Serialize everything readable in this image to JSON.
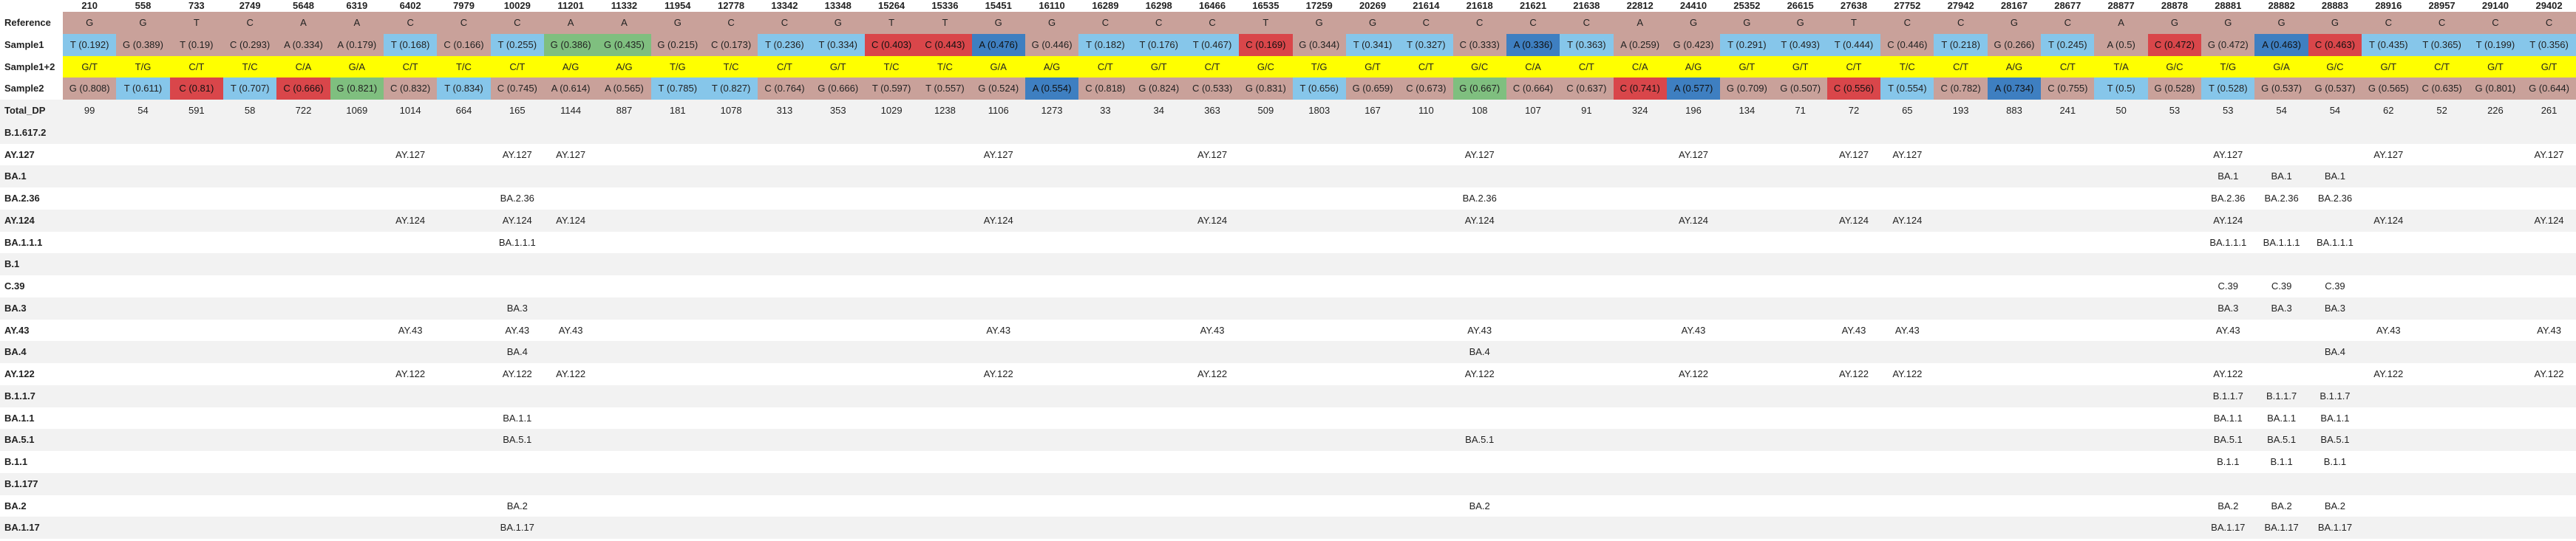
{
  "colors": {
    "base": "#c9a19a",
    "mixed": "#ffff00",
    "T": "#86c6ea",
    "C_high": "#d9464a",
    "G_high": "#7fbf7f",
    "A_high": "#3e7fc1",
    "band": "#f2f2f2"
  },
  "positions": [
    "210",
    "558",
    "733",
    "2749",
    "5648",
    "6319",
    "6402",
    "7979",
    "10029",
    "11201",
    "11332",
    "11954",
    "12778",
    "13342",
    "13348",
    "15264",
    "15336",
    "15451",
    "16110",
    "16289",
    "16298",
    "16466",
    "16535",
    "17259",
    "20269",
    "21614",
    "21618",
    "21621",
    "21638",
    "22812",
    "24410",
    "25352",
    "26615",
    "27638",
    "27752",
    "27942",
    "28167",
    "28677",
    "28877",
    "28878",
    "28881",
    "28882",
    "28883",
    "28916",
    "28957",
    "29140",
    "29402"
  ],
  "rows": [
    {
      "label": "Reference",
      "kind": "ref",
      "cells": [
        {
          "t": "G",
          "c": "G"
        },
        {
          "t": "G",
          "c": "G"
        },
        {
          "t": "T",
          "c": "base"
        },
        {
          "t": "C",
          "c": "C"
        },
        {
          "t": "A",
          "c": "A"
        },
        {
          "t": "A",
          "c": "A"
        },
        {
          "t": "C",
          "c": "C"
        },
        {
          "t": "C",
          "c": "C"
        },
        {
          "t": "C",
          "c": "C"
        },
        {
          "t": "A",
          "c": "A"
        },
        {
          "t": "A",
          "c": "A"
        },
        {
          "t": "G",
          "c": "G"
        },
        {
          "t": "C",
          "c": "C"
        },
        {
          "t": "C",
          "c": "C"
        },
        {
          "t": "G",
          "c": "G"
        },
        {
          "t": "T",
          "c": "base"
        },
        {
          "t": "T",
          "c": "base"
        },
        {
          "t": "G",
          "c": "G"
        },
        {
          "t": "G",
          "c": "G"
        },
        {
          "t": "C",
          "c": "C"
        },
        {
          "t": "C",
          "c": "C"
        },
        {
          "t": "C",
          "c": "C"
        },
        {
          "t": "T",
          "c": "base"
        },
        {
          "t": "G",
          "c": "G"
        },
        {
          "t": "G",
          "c": "G"
        },
        {
          "t": "C",
          "c": "C"
        },
        {
          "t": "C",
          "c": "C"
        },
        {
          "t": "C",
          "c": "C"
        },
        {
          "t": "C",
          "c": "C"
        },
        {
          "t": "A",
          "c": "A"
        },
        {
          "t": "G",
          "c": "G"
        },
        {
          "t": "G",
          "c": "G"
        },
        {
          "t": "G",
          "c": "G"
        },
        {
          "t": "T",
          "c": "base"
        },
        {
          "t": "C",
          "c": "C"
        },
        {
          "t": "C",
          "c": "C"
        },
        {
          "t": "G",
          "c": "G"
        },
        {
          "t": "C",
          "c": "C"
        },
        {
          "t": "A",
          "c": "A"
        },
        {
          "t": "G",
          "c": "G"
        },
        {
          "t": "G",
          "c": "G"
        },
        {
          "t": "G",
          "c": "G"
        },
        {
          "t": "G",
          "c": "G"
        },
        {
          "t": "C",
          "c": "C"
        },
        {
          "t": "C",
          "c": "C"
        },
        {
          "t": "C",
          "c": "C"
        },
        {
          "t": "C",
          "c": "C"
        }
      ]
    },
    {
      "label": "Sample1",
      "kind": "sample",
      "cells": [
        {
          "t": "T (0.192)",
          "c": "T"
        },
        {
          "t": "G (0.389)",
          "c": "G"
        },
        {
          "t": "T (0.19)",
          "c": "base"
        },
        {
          "t": "C (0.293)",
          "c": "C"
        },
        {
          "t": "A (0.334)",
          "c": "A"
        },
        {
          "t": "A (0.179)",
          "c": "A"
        },
        {
          "t": "T (0.168)",
          "c": "T"
        },
        {
          "t": "C (0.166)",
          "c": "C"
        },
        {
          "t": "T (0.255)",
          "c": "T"
        },
        {
          "t": "G (0.386)",
          "c": "Ghi"
        },
        {
          "t": "G (0.435)",
          "c": "Ghi"
        },
        {
          "t": "G (0.215)",
          "c": "G"
        },
        {
          "t": "C (0.173)",
          "c": "C"
        },
        {
          "t": "T (0.236)",
          "c": "T"
        },
        {
          "t": "T (0.334)",
          "c": "T"
        },
        {
          "t": "C (0.403)",
          "c": "Chi"
        },
        {
          "t": "C (0.443)",
          "c": "Chi"
        },
        {
          "t": "A (0.476)",
          "c": "Ahi"
        },
        {
          "t": "G (0.446)",
          "c": "G"
        },
        {
          "t": "T (0.182)",
          "c": "T"
        },
        {
          "t": "T (0.176)",
          "c": "T"
        },
        {
          "t": "T (0.467)",
          "c": "T"
        },
        {
          "t": "C (0.169)",
          "c": "Chi"
        },
        {
          "t": "G (0.344)",
          "c": "G"
        },
        {
          "t": "T (0.341)",
          "c": "T"
        },
        {
          "t": "T (0.327)",
          "c": "T"
        },
        {
          "t": "C (0.333)",
          "c": "C"
        },
        {
          "t": "A (0.336)",
          "c": "Ahi"
        },
        {
          "t": "T (0.363)",
          "c": "T"
        },
        {
          "t": "A (0.259)",
          "c": "A"
        },
        {
          "t": "G (0.423)",
          "c": "G"
        },
        {
          "t": "T (0.291)",
          "c": "T"
        },
        {
          "t": "T (0.493)",
          "c": "T"
        },
        {
          "t": "T (0.444)",
          "c": "T"
        },
        {
          "t": "C (0.446)",
          "c": "C"
        },
        {
          "t": "T (0.218)",
          "c": "T"
        },
        {
          "t": "G (0.266)",
          "c": "G"
        },
        {
          "t": "T (0.245)",
          "c": "T"
        },
        {
          "t": "A (0.5)",
          "c": "A"
        },
        {
          "t": "C (0.472)",
          "c": "Chi"
        },
        {
          "t": "G (0.472)",
          "c": "G"
        },
        {
          "t": "A (0.463)",
          "c": "Ahi"
        },
        {
          "t": "C (0.463)",
          "c": "Chi"
        },
        {
          "t": "T (0.435)",
          "c": "T"
        },
        {
          "t": "T (0.365)",
          "c": "T"
        },
        {
          "t": "T (0.199)",
          "c": "T"
        },
        {
          "t": "T (0.356)",
          "c": "T"
        }
      ]
    },
    {
      "label": "Sample1+2",
      "kind": "mix",
      "cells": [
        {
          "t": "G/T",
          "c": "mix"
        },
        {
          "t": "T/G",
          "c": "mix"
        },
        {
          "t": "C/T",
          "c": "mix"
        },
        {
          "t": "T/C",
          "c": "mix"
        },
        {
          "t": "C/A",
          "c": "mix"
        },
        {
          "t": "G/A",
          "c": "mix"
        },
        {
          "t": "C/T",
          "c": "mix"
        },
        {
          "t": "T/C",
          "c": "mix"
        },
        {
          "t": "C/T",
          "c": "mix"
        },
        {
          "t": "A/G",
          "c": "mix"
        },
        {
          "t": "A/G",
          "c": "mix"
        },
        {
          "t": "T/G",
          "c": "mix"
        },
        {
          "t": "T/C",
          "c": "mix"
        },
        {
          "t": "C/T",
          "c": "mix"
        },
        {
          "t": "G/T",
          "c": "mix"
        },
        {
          "t": "T/C",
          "c": "mix"
        },
        {
          "t": "T/C",
          "c": "mix"
        },
        {
          "t": "G/A",
          "c": "mix"
        },
        {
          "t": "A/G",
          "c": "mix"
        },
        {
          "t": "C/T",
          "c": "mix"
        },
        {
          "t": "G/T",
          "c": "mix"
        },
        {
          "t": "C/T",
          "c": "mix"
        },
        {
          "t": "G/C",
          "c": "mix"
        },
        {
          "t": "T/G",
          "c": "mix"
        },
        {
          "t": "G/T",
          "c": "mix"
        },
        {
          "t": "C/T",
          "c": "mix"
        },
        {
          "t": "G/C",
          "c": "mix"
        },
        {
          "t": "C/A",
          "c": "mix"
        },
        {
          "t": "C/T",
          "c": "mix"
        },
        {
          "t": "C/A",
          "c": "mix"
        },
        {
          "t": "A/G",
          "c": "mix"
        },
        {
          "t": "G/T",
          "c": "mix"
        },
        {
          "t": "G/T",
          "c": "mix"
        },
        {
          "t": "C/T",
          "c": "mix"
        },
        {
          "t": "T/C",
          "c": "mix"
        },
        {
          "t": "C/T",
          "c": "mix"
        },
        {
          "t": "A/G",
          "c": "mix"
        },
        {
          "t": "C/T",
          "c": "mix"
        },
        {
          "t": "T/A",
          "c": "mix"
        },
        {
          "t": "G/C",
          "c": "mix"
        },
        {
          "t": "T/G",
          "c": "mix"
        },
        {
          "t": "G/A",
          "c": "mix"
        },
        {
          "t": "G/C",
          "c": "mix"
        },
        {
          "t": "G/T",
          "c": "mix"
        },
        {
          "t": "C/T",
          "c": "mix"
        },
        {
          "t": "G/T",
          "c": "mix"
        },
        {
          "t": "G/T",
          "c": "mix"
        }
      ]
    },
    {
      "label": "Sample2",
      "kind": "sample",
      "cells": [
        {
          "t": "G (0.808)",
          "c": "G"
        },
        {
          "t": "T (0.611)",
          "c": "T"
        },
        {
          "t": "C (0.81)",
          "c": "Chi"
        },
        {
          "t": "T (0.707)",
          "c": "T"
        },
        {
          "t": "C (0.666)",
          "c": "Chi"
        },
        {
          "t": "G (0.821)",
          "c": "Ghi"
        },
        {
          "t": "C (0.832)",
          "c": "C"
        },
        {
          "t": "T (0.834)",
          "c": "T"
        },
        {
          "t": "C (0.745)",
          "c": "C"
        },
        {
          "t": "A (0.614)",
          "c": "A"
        },
        {
          "t": "A (0.565)",
          "c": "A"
        },
        {
          "t": "T (0.785)",
          "c": "T"
        },
        {
          "t": "T (0.827)",
          "c": "T"
        },
        {
          "t": "C (0.764)",
          "c": "C"
        },
        {
          "t": "G (0.666)",
          "c": "G"
        },
        {
          "t": "T (0.597)",
          "c": "base"
        },
        {
          "t": "T (0.557)",
          "c": "base"
        },
        {
          "t": "G (0.524)",
          "c": "G"
        },
        {
          "t": "A (0.554)",
          "c": "Ahi"
        },
        {
          "t": "C (0.818)",
          "c": "C"
        },
        {
          "t": "G (0.824)",
          "c": "G"
        },
        {
          "t": "C (0.533)",
          "c": "C"
        },
        {
          "t": "G (0.831)",
          "c": "G"
        },
        {
          "t": "T (0.656)",
          "c": "T"
        },
        {
          "t": "G (0.659)",
          "c": "G"
        },
        {
          "t": "C (0.673)",
          "c": "C"
        },
        {
          "t": "G (0.667)",
          "c": "Ghi"
        },
        {
          "t": "C (0.664)",
          "c": "C"
        },
        {
          "t": "C (0.637)",
          "c": "C"
        },
        {
          "t": "C (0.741)",
          "c": "Chi"
        },
        {
          "t": "A (0.577)",
          "c": "Ahi"
        },
        {
          "t": "G (0.709)",
          "c": "G"
        },
        {
          "t": "G (0.507)",
          "c": "G"
        },
        {
          "t": "C (0.556)",
          "c": "Chi"
        },
        {
          "t": "T (0.554)",
          "c": "T"
        },
        {
          "t": "C (0.782)",
          "c": "C"
        },
        {
          "t": "A (0.734)",
          "c": "Ahi"
        },
        {
          "t": "C (0.755)",
          "c": "C"
        },
        {
          "t": "T (0.5)",
          "c": "T"
        },
        {
          "t": "G (0.528)",
          "c": "G"
        },
        {
          "t": "T (0.528)",
          "c": "T"
        },
        {
          "t": "G (0.537)",
          "c": "G"
        },
        {
          "t": "G (0.537)",
          "c": "G"
        },
        {
          "t": "G (0.565)",
          "c": "G"
        },
        {
          "t": "C (0.635)",
          "c": "C"
        },
        {
          "t": "G (0.801)",
          "c": "G"
        },
        {
          "t": "G (0.644)",
          "c": "G"
        }
      ]
    },
    {
      "label": "Total_DP",
      "kind": "dp",
      "cells": [
        {
          "t": "99"
        },
        {
          "t": "54"
        },
        {
          "t": "591"
        },
        {
          "t": "58"
        },
        {
          "t": "722"
        },
        {
          "t": "1069"
        },
        {
          "t": "1014"
        },
        {
          "t": "664"
        },
        {
          "t": "165"
        },
        {
          "t": "1144"
        },
        {
          "t": "887"
        },
        {
          "t": "181"
        },
        {
          "t": "1078"
        },
        {
          "t": "313"
        },
        {
          "t": "353"
        },
        {
          "t": "1029"
        },
        {
          "t": "1238"
        },
        {
          "t": "1106"
        },
        {
          "t": "1273"
        },
        {
          "t": "33"
        },
        {
          "t": "34"
        },
        {
          "t": "363"
        },
        {
          "t": "509"
        },
        {
          "t": "1803"
        },
        {
          "t": "167"
        },
        {
          "t": "110"
        },
        {
          "t": "108"
        },
        {
          "t": "107"
        },
        {
          "t": "91"
        },
        {
          "t": "324"
        },
        {
          "t": "196"
        },
        {
          "t": "134"
        },
        {
          "t": "71"
        },
        {
          "t": "72"
        },
        {
          "t": "65"
        },
        {
          "t": "193"
        },
        {
          "t": "883"
        },
        {
          "t": "241"
        },
        {
          "t": "50"
        },
        {
          "t": "53"
        },
        {
          "t": "53"
        },
        {
          "t": "54"
        },
        {
          "t": "54"
        },
        {
          "t": "62"
        },
        {
          "t": "52"
        },
        {
          "t": "226"
        },
        {
          "t": "261"
        }
      ]
    }
  ],
  "lineage_rows": [
    {
      "label": "B.1.617.2",
      "marks": {}
    },
    {
      "label": "AY.127",
      "marks": {
        "6": "AY.127",
        "8": "AY.127",
        "9": "AY.127",
        "17": "AY.127",
        "21": "AY.127",
        "26": "AY.127",
        "30": "AY.127",
        "33": "AY.127",
        "34": "AY.127",
        "40": "AY.127",
        "43": "AY.127",
        "46": "AY.127"
      }
    },
    {
      "label": "BA.1",
      "marks": {
        "40": "BA.1",
        "41": "BA.1",
        "42": "BA.1"
      }
    },
    {
      "label": "BA.2.36",
      "marks": {
        "8": "BA.2.36",
        "26": "BA.2.36",
        "40": "BA.2.36",
        "41": "BA.2.36",
        "42": "BA.2.36"
      }
    },
    {
      "label": "AY.124",
      "marks": {
        "6": "AY.124",
        "8": "AY.124",
        "9": "AY.124",
        "17": "AY.124",
        "21": "AY.124",
        "26": "AY.124",
        "30": "AY.124",
        "33": "AY.124",
        "34": "AY.124",
        "40": "AY.124",
        "43": "AY.124",
        "46": "AY.124"
      }
    },
    {
      "label": "BA.1.1.1",
      "marks": {
        "8": "BA.1.1.1",
        "40": "BA.1.1.1",
        "41": "BA.1.1.1",
        "42": "BA.1.1.1"
      }
    },
    {
      "label": "B.1",
      "marks": {}
    },
    {
      "label": "C.39",
      "marks": {
        "40": "C.39",
        "41": "C.39",
        "42": "C.39"
      }
    },
    {
      "label": "BA.3",
      "marks": {
        "8": "BA.3",
        "40": "BA.3",
        "41": "BA.3",
        "42": "BA.3"
      }
    },
    {
      "label": "AY.43",
      "marks": {
        "6": "AY.43",
        "8": "AY.43",
        "9": "AY.43",
        "17": "AY.43",
        "21": "AY.43",
        "26": "AY.43",
        "30": "AY.43",
        "33": "AY.43",
        "34": "AY.43",
        "40": "AY.43",
        "43": "AY.43",
        "46": "AY.43"
      }
    },
    {
      "label": "BA.4",
      "marks": {
        "8": "BA.4",
        "26": "BA.4",
        "42": "BA.4"
      }
    },
    {
      "label": "AY.122",
      "marks": {
        "6": "AY.122",
        "8": "AY.122",
        "9": "AY.122",
        "17": "AY.122",
        "21": "AY.122",
        "26": "AY.122",
        "30": "AY.122",
        "33": "AY.122",
        "34": "AY.122",
        "40": "AY.122",
        "43": "AY.122",
        "46": "AY.122"
      }
    },
    {
      "label": "B.1.1.7",
      "marks": {
        "40": "B.1.1.7",
        "41": "B.1.1.7",
        "42": "B.1.1.7"
      }
    },
    {
      "label": "BA.1.1",
      "marks": {
        "8": "BA.1.1",
        "40": "BA.1.1",
        "41": "BA.1.1",
        "42": "BA.1.1"
      }
    },
    {
      "label": "BA.5.1",
      "marks": {
        "8": "BA.5.1",
        "26": "BA.5.1",
        "40": "BA.5.1",
        "41": "BA.5.1",
        "42": "BA.5.1"
      }
    },
    {
      "label": "B.1.1",
      "marks": {
        "40": "B.1.1",
        "41": "B.1.1",
        "42": "B.1.1"
      }
    },
    {
      "label": "B.1.177",
      "marks": {}
    },
    {
      "label": "BA.2",
      "marks": {
        "8": "BA.2",
        "26": "BA.2",
        "40": "BA.2",
        "41": "BA.2",
        "42": "BA.2"
      }
    },
    {
      "label": "BA.1.17",
      "marks": {
        "8": "BA.1.17",
        "40": "BA.1.17",
        "41": "BA.1.17",
        "42": "BA.1.17"
      }
    }
  ]
}
